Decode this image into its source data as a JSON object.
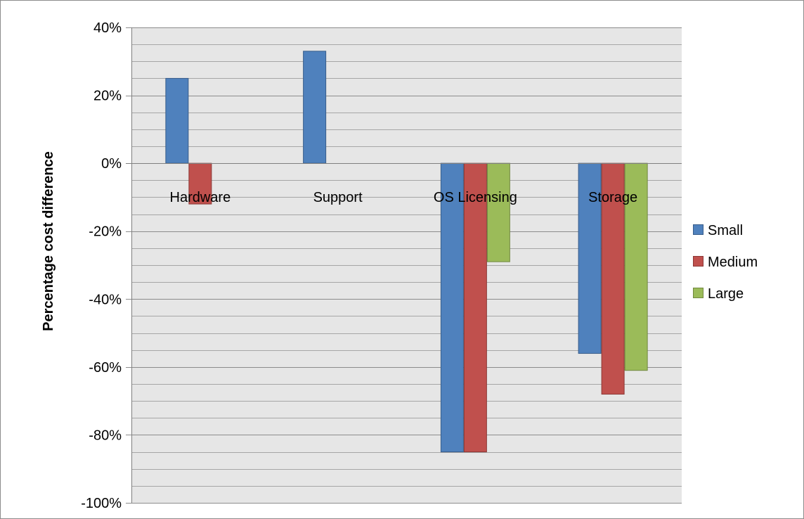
{
  "chart_data": {
    "type": "bar",
    "categories": [
      "Hardware",
      "Support",
      "OS Licensing",
      "Storage"
    ],
    "series": [
      {
        "name": "Small",
        "values": [
          25,
          33,
          -85,
          -56
        ],
        "color": "#4f81bd",
        "stroke": "#385d8a"
      },
      {
        "name": "Medium",
        "values": [
          -12,
          null,
          -85,
          -68
        ],
        "color": "#c0504d",
        "stroke": "#8c3836"
      },
      {
        "name": "Large",
        "values": [
          null,
          null,
          -29,
          -61
        ],
        "color": "#9bbb59",
        "stroke": "#71893f"
      }
    ],
    "title": "",
    "xlabel": "",
    "ylabel": "Percentage cost difference",
    "ylim": [
      -100,
      40
    ],
    "y_ticks": [
      40,
      20,
      0,
      -20,
      -40,
      -60,
      -80,
      -100
    ],
    "y_tick_labels": [
      "40%",
      "20%",
      "0%",
      "-20%",
      "-40%",
      "-60%",
      "-80%",
      "-100%"
    ],
    "grid": {
      "major": true,
      "minor": true,
      "minor_step": 4
    },
    "plot_background": "#e6e6e6",
    "legend_position": "right"
  }
}
